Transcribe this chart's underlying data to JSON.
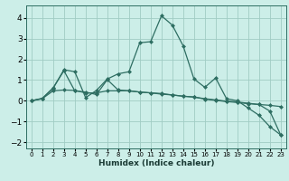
{
  "xlabel": "Humidex (Indice chaleur)",
  "background_color": "#cceee8",
  "line_color": "#2e6e62",
  "grid_color": "#a0ccc4",
  "xlim": [
    -0.5,
    23.5
  ],
  "ylim": [
    -2.3,
    4.6
  ],
  "xticks": [
    0,
    1,
    2,
    3,
    4,
    5,
    6,
    7,
    8,
    9,
    10,
    11,
    12,
    13,
    14,
    15,
    16,
    17,
    18,
    19,
    20,
    21,
    22,
    23
  ],
  "yticks": [
    -2,
    -1,
    0,
    1,
    2,
    3,
    4
  ],
  "series": [
    [
      0.0,
      0.1,
      0.6,
      1.5,
      1.4,
      0.15,
      0.5,
      1.05,
      1.3,
      1.4,
      2.8,
      2.85,
      4.1,
      3.65,
      2.65,
      1.05,
      0.65,
      1.1,
      0.1,
      0.0,
      -0.35,
      -0.7,
      -1.25,
      -1.65
    ],
    [
      0.0,
      0.12,
      0.62,
      1.45,
      0.48,
      0.42,
      0.3,
      1.02,
      0.52,
      0.48,
      0.42,
      0.38,
      0.35,
      0.28,
      0.22,
      0.18,
      0.1,
      0.04,
      -0.02,
      -0.06,
      -0.12,
      -0.18,
      -0.22,
      -0.28
    ],
    [
      0.0,
      0.1,
      0.48,
      0.52,
      0.5,
      0.38,
      0.38,
      0.48,
      0.48,
      0.48,
      0.42,
      0.38,
      0.32,
      0.28,
      0.22,
      0.18,
      0.08,
      0.02,
      -0.04,
      -0.08,
      -0.14,
      -0.18,
      -0.5,
      -1.65
    ]
  ]
}
